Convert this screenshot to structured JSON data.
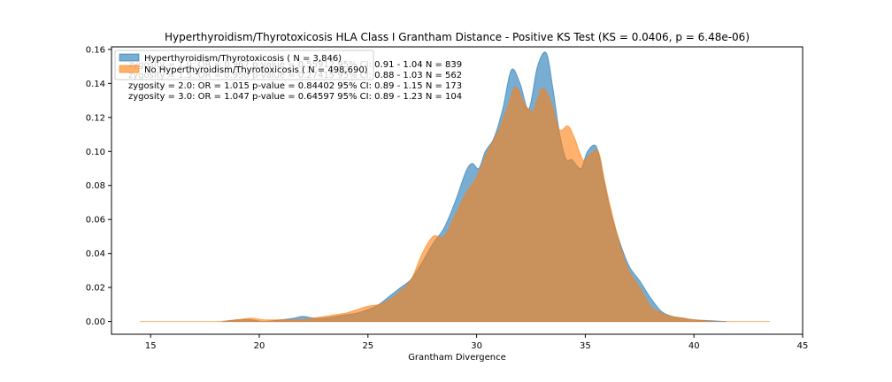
{
  "chart_data": {
    "type": "area",
    "title": "Hyperthyroidism/Thyrotoxicosis HLA Class I Grantham Distance - Positive KS Test (KS = 0.0406, p = 6.48e-06)",
    "xlabel": "Grantham Divergence",
    "ylabel": "",
    "xlim": [
      13.2,
      45.0
    ],
    "ylim": [
      -0.0075,
      0.1615
    ],
    "xticks": [
      15,
      20,
      25,
      30,
      35,
      40,
      45
    ],
    "yticks": [
      0.0,
      0.02,
      0.04,
      0.06,
      0.08,
      0.1,
      0.12,
      0.14,
      0.16
    ],
    "ytick_labels": [
      "0.00",
      "0.02",
      "0.04",
      "0.06",
      "0.08",
      "0.10",
      "0.12",
      "0.14",
      "0.16"
    ],
    "grid": false,
    "legend_position": "top-left",
    "series": [
      {
        "name": "Hyperthyroidism/Thyrotoxicosis ( N = 3,846)",
        "color": "#1f77b4",
        "x": [
          18.3,
          19.0,
          19.6,
          20.2,
          21.0,
          21.6,
          22.0,
          22.5,
          23.0,
          23.5,
          24.0,
          24.5,
          25.0,
          25.5,
          26.0,
          26.5,
          27.0,
          27.5,
          28.0,
          28.5,
          29.0,
          29.5,
          29.8,
          30.1,
          30.4,
          30.8,
          31.2,
          31.6,
          32.0,
          32.4,
          32.8,
          33.2,
          33.5,
          33.8,
          34.1,
          34.4,
          34.8,
          35.1,
          35.5,
          35.8,
          36.1,
          36.5,
          37.0,
          37.5,
          38.0,
          38.5,
          39.0,
          39.5,
          40.0,
          41.5
        ],
        "y": [
          0.0,
          0.001,
          0.001,
          0.0,
          0.001,
          0.002,
          0.003,
          0.002,
          0.002,
          0.003,
          0.004,
          0.005,
          0.007,
          0.01,
          0.015,
          0.02,
          0.025,
          0.035,
          0.046,
          0.055,
          0.07,
          0.088,
          0.093,
          0.09,
          0.1,
          0.108,
          0.125,
          0.148,
          0.14,
          0.125,
          0.15,
          0.158,
          0.138,
          0.112,
          0.096,
          0.095,
          0.09,
          0.1,
          0.103,
          0.087,
          0.068,
          0.05,
          0.033,
          0.024,
          0.014,
          0.006,
          0.003,
          0.002,
          0.001,
          0.0
        ]
      },
      {
        "name": "No Hyperthyroidism/Thyrotoxicosis ( N = 498,690)",
        "color": "#ff7f0e",
        "x": [
          14.5,
          18.0,
          19.0,
          19.6,
          20.2,
          21.0,
          22.0,
          22.5,
          23.0,
          23.5,
          24.0,
          24.5,
          25.0,
          25.5,
          26.0,
          26.5,
          27.0,
          27.5,
          28.0,
          28.5,
          29.0,
          29.5,
          30.0,
          30.5,
          31.0,
          31.4,
          31.8,
          32.2,
          32.6,
          33.0,
          33.4,
          33.8,
          34.2,
          34.5,
          34.9,
          35.2,
          35.6,
          35.9,
          36.2,
          36.6,
          37.0,
          37.5,
          38.0,
          38.5,
          39.0,
          39.5,
          40.0,
          41.0,
          43.5
        ],
        "y": [
          0.0,
          0.0,
          0.001,
          0.002,
          0.001,
          0.001,
          0.001,
          0.002,
          0.003,
          0.004,
          0.005,
          0.007,
          0.009,
          0.01,
          0.013,
          0.018,
          0.025,
          0.04,
          0.05,
          0.05,
          0.062,
          0.075,
          0.085,
          0.1,
          0.112,
          0.125,
          0.138,
          0.128,
          0.124,
          0.137,
          0.13,
          0.113,
          0.115,
          0.108,
          0.095,
          0.098,
          0.1,
          0.082,
          0.065,
          0.045,
          0.03,
          0.02,
          0.009,
          0.005,
          0.003,
          0.002,
          0.001,
          0.0,
          0.0
        ]
      }
    ],
    "annotations": [
      "zygosity = 1.0:  OR = 0.967   p-value = 0.55912   95% CI: 0.91 - 1.04   N = 839",
      "zygosity = 1.5:  OR = 0.950   p-value = 0.27415   95% CI: 0.88 - 1.03   N = 562",
      "zygosity = 2.0:  OR = 1.015   p-value = 0.84402   95% CI: 0.89 - 1.15   N = 173",
      "zygosity = 3.0:  OR = 1.047   p-value = 0.64597   95% CI: 0.89 - 1.23   N = 104"
    ]
  }
}
